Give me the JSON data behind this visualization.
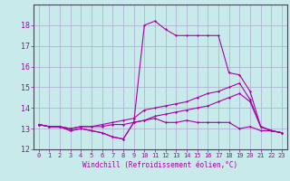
{
  "bg_color": "#c8eaea",
  "line_color": "#aa00aa",
  "grid_color": "#aaaacc",
  "xlabel": "Windchill (Refroidissement éolien,°C)",
  "xlim": [
    -0.5,
    23.5
  ],
  "ylim": [
    12,
    19
  ],
  "yticks": [
    12,
    13,
    14,
    15,
    16,
    17,
    18
  ],
  "xticks": [
    0,
    1,
    2,
    3,
    4,
    5,
    6,
    7,
    8,
    9,
    10,
    11,
    12,
    13,
    14,
    15,
    16,
    17,
    18,
    19,
    20,
    21,
    22,
    23
  ],
  "lines": [
    {
      "x": [
        0,
        1,
        2,
        3,
        4,
        5,
        6,
        7,
        8,
        9,
        10,
        11,
        12,
        13,
        14,
        15,
        16,
        17,
        18,
        19,
        20,
        21,
        22,
        23
      ],
      "y": [
        13.2,
        13.1,
        13.1,
        12.9,
        13.0,
        12.9,
        12.8,
        12.6,
        12.5,
        13.3,
        13.4,
        13.5,
        13.3,
        13.3,
        13.4,
        13.3,
        13.3,
        13.3,
        13.3,
        13.0,
        13.1,
        12.9,
        12.9,
        12.8
      ]
    },
    {
      "x": [
        0,
        1,
        2,
        3,
        4,
        5,
        6,
        7,
        8,
        9,
        10,
        11,
        12,
        13,
        14,
        15,
        16,
        17,
        18,
        19,
        20,
        21,
        22,
        23
      ],
      "y": [
        13.2,
        13.1,
        13.1,
        12.9,
        13.0,
        12.9,
        12.8,
        12.6,
        12.5,
        13.3,
        18.0,
        18.2,
        17.8,
        17.5,
        17.5,
        17.5,
        17.5,
        17.5,
        15.7,
        15.6,
        14.8,
        13.1,
        12.9,
        12.8
      ]
    },
    {
      "x": [
        0,
        1,
        2,
        3,
        4,
        5,
        6,
        7,
        8,
        9,
        10,
        11,
        12,
        13,
        14,
        15,
        16,
        17,
        18,
        19,
        20,
        21,
        22,
        23
      ],
      "y": [
        13.2,
        13.1,
        13.1,
        13.0,
        13.1,
        13.1,
        13.1,
        13.2,
        13.2,
        13.3,
        13.4,
        13.6,
        13.7,
        13.8,
        13.9,
        14.0,
        14.1,
        14.3,
        14.5,
        14.7,
        14.3,
        13.1,
        12.9,
        12.8
      ]
    },
    {
      "x": [
        0,
        1,
        2,
        3,
        4,
        5,
        6,
        7,
        8,
        9,
        10,
        11,
        12,
        13,
        14,
        15,
        16,
        17,
        18,
        19,
        20,
        21,
        22,
        23
      ],
      "y": [
        13.2,
        13.1,
        13.1,
        13.0,
        13.1,
        13.1,
        13.2,
        13.3,
        13.4,
        13.5,
        13.9,
        14.0,
        14.1,
        14.2,
        14.3,
        14.5,
        14.7,
        14.8,
        15.0,
        15.2,
        14.4,
        13.1,
        12.9,
        12.8
      ]
    }
  ]
}
